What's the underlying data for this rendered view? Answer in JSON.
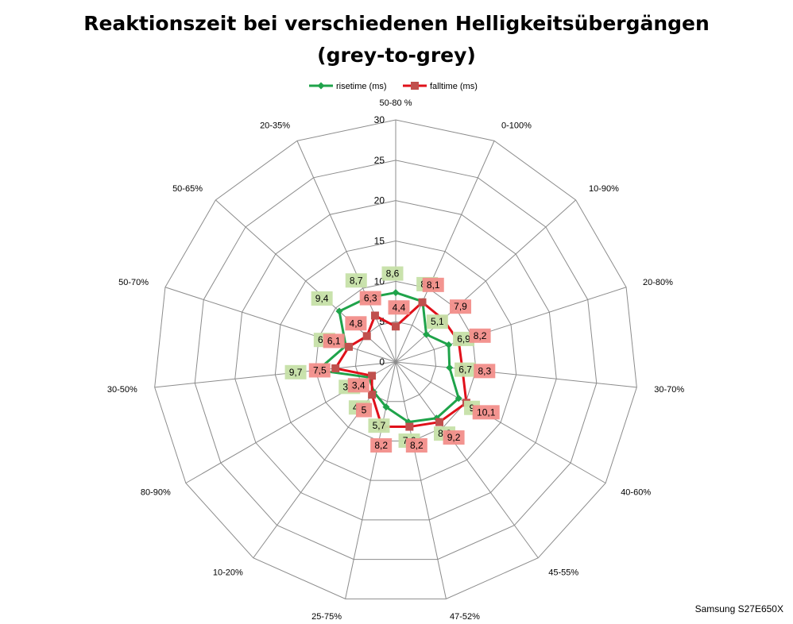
{
  "chart_data": {
    "type": "radar",
    "title_line1": "Reaktionszeit bei verschiedenen Helligkeitsübergängen",
    "title_line2": "(grey-to-grey)",
    "categories": [
      "50-80 %",
      "0-100%",
      "10-90%",
      "20-80%",
      "30-70%",
      "40-60%",
      "45-55%",
      "47-52%",
      "25-75%",
      "10-20%",
      "80-90%",
      "30-50%",
      "50-70%",
      "50-65%",
      "20-35%"
    ],
    "axis": {
      "min": 0,
      "max": 30,
      "ticks": [
        "0",
        "5",
        "10",
        "15",
        "20",
        "25",
        "30"
      ]
    },
    "series": [
      {
        "name": "risetime (ms)",
        "color": "#1fa34a",
        "label_bg": "#c6e0a8",
        "values": [
          8.6,
          8.2,
          5.1,
          6.9,
          6.7,
          9.0,
          8.6,
          7.6,
          5.7,
          4.6,
          3.8,
          9.7,
          6.5,
          9.4,
          8.7
        ],
        "labels": [
          "8,6",
          "8,2",
          "5,1",
          "6,9",
          "6,7",
          "9",
          "8,6",
          "7,6",
          "5,7",
          "4,6",
          "3,8",
          "9,7",
          "6,5",
          "9,4",
          "8,7"
        ]
      },
      {
        "name": "falltime (ms)",
        "color": "#e0101a",
        "marker": "#c0504d",
        "label_bg": "#f28e8a",
        "values": [
          4.4,
          8.1,
          7.9,
          8.2,
          8.3,
          10.1,
          9.2,
          8.2,
          8.2,
          5.0,
          3.4,
          7.5,
          6.1,
          4.8,
          6.3
        ],
        "labels": [
          "4,4",
          "8,1",
          "7,9",
          "8,2",
          "8,3",
          "10,1",
          "9,2",
          "8,2",
          "8,2",
          "5",
          "3,4",
          "7,5",
          "6,1",
          "4,8",
          "6,3"
        ]
      }
    ],
    "legend_position": "top",
    "grid": true,
    "watermark": "Samsung S27E650X"
  }
}
